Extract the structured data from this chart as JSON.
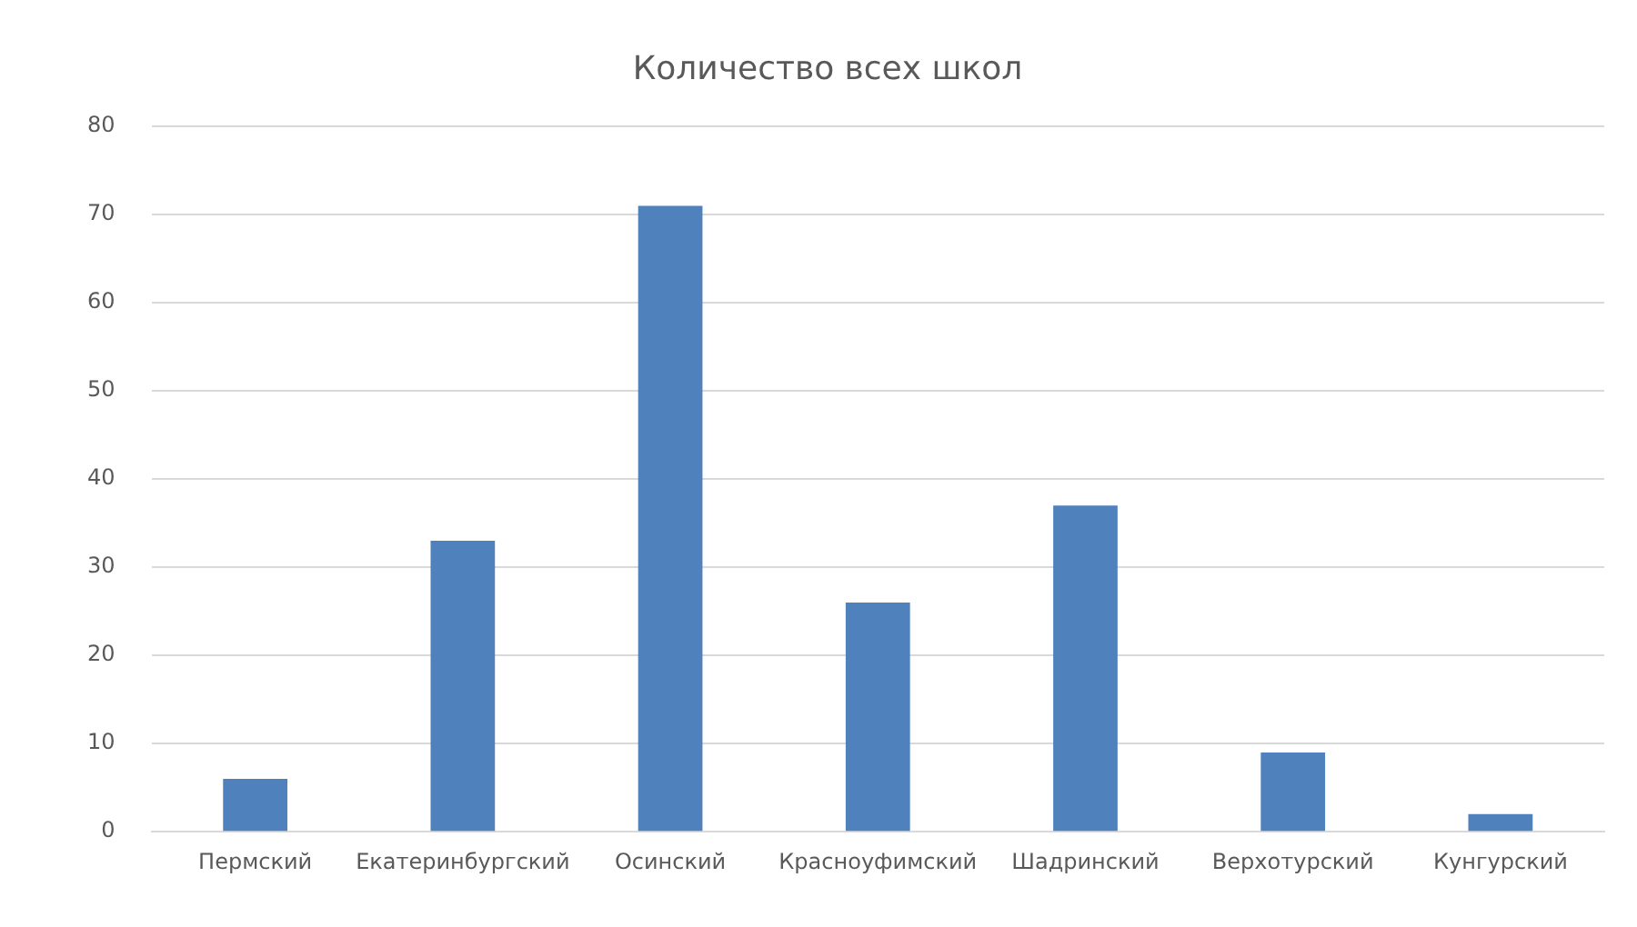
{
  "chart_data": {
    "type": "bar",
    "title": "Количество всех школ",
    "categories": [
      "Пермский",
      "Екатеринбургский",
      "Осинский",
      "Красноуфимский",
      "Шадринский",
      "Верхотурский",
      "Кунгурский"
    ],
    "values": [
      6,
      33,
      71,
      26,
      37,
      9,
      2
    ],
    "color": "#4f81bd",
    "ylim": [
      0,
      80
    ],
    "yticks": [
      0,
      10,
      20,
      30,
      40,
      50,
      60,
      70,
      80
    ],
    "grid": "y"
  }
}
